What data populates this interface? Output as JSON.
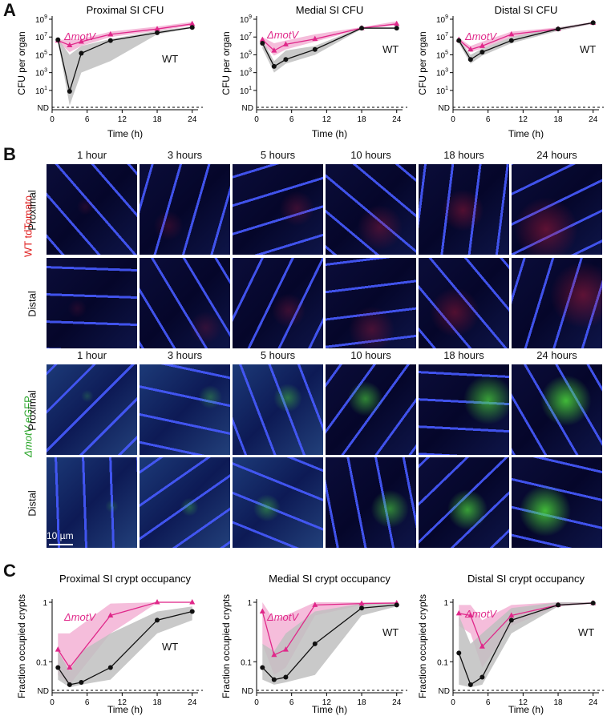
{
  "panels": {
    "A": "A",
    "B": "B",
    "C": "C"
  },
  "colors": {
    "wt": "#111111",
    "motv": "#e0288a",
    "wt_band": "#bfbfbf",
    "motv_band": "#f2a7cf"
  },
  "panel_b": {
    "time_labels": [
      "1 hour",
      "3 hours",
      "5 hours",
      "10 hours",
      "18 hours",
      "24 hours"
    ],
    "group_wt": "WT tdTomato",
    "group_motv_prefix": "ΔmotV",
    "group_motv_suffix": " eGFP",
    "row_labels": [
      "Proximal",
      "Distal"
    ],
    "scale_bar": "10 µm"
  },
  "chart_data": [
    {
      "type": "line",
      "panel": "A",
      "title": "Proximal SI CFU",
      "xlabel": "Time (h)",
      "ylabel": "CFU per organ",
      "yscale": "log",
      "x_ticks": [
        "0",
        "6",
        "12",
        "18",
        "24"
      ],
      "y_ticks": [
        "10^1",
        "10^3",
        "10^5",
        "10^7",
        "10^9"
      ],
      "nd_label": "ND",
      "ylim": [
        0.03,
        1000000000.0
      ],
      "xlim": [
        0,
        25
      ],
      "series": [
        {
          "name": "ΔmotV",
          "marker": "triangle",
          "x": [
            1,
            3,
            5,
            10,
            18,
            24
          ],
          "y": [
            4000000.0,
            1200000.0,
            3000000.0,
            20000000.0,
            80000000.0,
            300000000.0
          ],
          "band_lo": [
            3000000.0,
            200000.0,
            1000000.0,
            10000000.0,
            50000000.0,
            200000000.0
          ],
          "band_hi": [
            5000000.0,
            5000000.0,
            6000000.0,
            40000000.0,
            150000000.0,
            500000000.0
          ]
        },
        {
          "name": "WT",
          "marker": "circle",
          "x": [
            1,
            3,
            5,
            10,
            18,
            24
          ],
          "y": [
            5000000.0,
            8,
            150000.0,
            4000000.0,
            30000000.0,
            120000000.0
          ],
          "band_lo": [
            3000000.0,
            0.1,
            1000.0,
            20000.0,
            20000000.0,
            100000000.0
          ],
          "band_hi": [
            7000000.0,
            100000.0,
            1000000.0,
            6000000.0,
            50000000.0,
            150000000.0
          ]
        }
      ]
    },
    {
      "type": "line",
      "panel": "A",
      "title": "Medial SI CFU",
      "xlabel": "Time (h)",
      "ylabel": "CFU per organ",
      "yscale": "log",
      "x_ticks": [
        "0",
        "6",
        "12",
        "18",
        "24"
      ],
      "y_ticks": [
        "10^1",
        "10^3",
        "10^5",
        "10^7",
        "10^9"
      ],
      "nd_label": "ND",
      "ylim": [
        0.03,
        1000000000.0
      ],
      "xlim": [
        0,
        25
      ],
      "series": [
        {
          "name": "ΔmotV",
          "marker": "triangle",
          "x": [
            1,
            3,
            5,
            10,
            18,
            24
          ],
          "y": [
            5000000.0,
            300000.0,
            1500000.0,
            6000000.0,
            100000000.0,
            300000000.0
          ],
          "band_lo": [
            2000000.0,
            80000.0,
            400000.0,
            3000000.0,
            80000000.0,
            200000000.0
          ],
          "band_hi": [
            10000000.0,
            2000000.0,
            4000000.0,
            20000000.0,
            130000000.0,
            600000000.0
          ]
        },
        {
          "name": "WT",
          "marker": "circle",
          "x": [
            1,
            3,
            5,
            10,
            18,
            24
          ],
          "y": [
            2000000.0,
            5000.0,
            30000.0,
            400000.0,
            100000000.0,
            100000000.0
          ],
          "band_lo": [
            500000.0,
            1000.0,
            10000.0,
            100000.0,
            80000000.0,
            80000000.0
          ],
          "band_hi": [
            5000000.0,
            20000.0,
            300000.0,
            1000000.0,
            130000000.0,
            130000000.0
          ]
        }
      ]
    },
    {
      "type": "line",
      "panel": "A",
      "title": "Distal SI CFU",
      "xlabel": "Time (h)",
      "ylabel": "CFU per organ",
      "yscale": "log",
      "x_ticks": [
        "0",
        "6",
        "12",
        "18",
        "24"
      ],
      "y_ticks": [
        "10^1",
        "10^3",
        "10^5",
        "10^7",
        "10^9"
      ],
      "nd_label": "ND",
      "ylim": [
        0.03,
        1000000000.0
      ],
      "xlim": [
        0,
        25
      ],
      "series": [
        {
          "name": "ΔmotV",
          "marker": "triangle",
          "x": [
            1,
            3,
            5,
            10,
            18,
            24
          ],
          "y": [
            5000000.0,
            400000.0,
            1000000.0,
            20000000.0,
            80000000.0,
            400000000.0
          ],
          "band_lo": [
            3000000.0,
            200000.0,
            500000.0,
            10000000.0,
            50000000.0,
            300000000.0
          ],
          "band_hi": [
            8000000.0,
            1000000.0,
            3000000.0,
            40000000.0,
            120000000.0,
            500000000.0
          ]
        },
        {
          "name": "WT",
          "marker": "circle",
          "x": [
            1,
            3,
            5,
            10,
            18,
            24
          ],
          "y": [
            4000000.0,
            30000.0,
            200000.0,
            4000000.0,
            80000000.0,
            400000000.0
          ],
          "band_lo": [
            2000000.0,
            10000.0,
            80000.0,
            2000000.0,
            50000000.0,
            300000000.0
          ],
          "band_hi": [
            6000000.0,
            100000.0,
            500000.0,
            10000000.0,
            120000000.0,
            500000000.0
          ]
        }
      ]
    },
    {
      "type": "line",
      "panel": "C",
      "title": "Proximal SI crypt occupancy",
      "xlabel": "Time (h)",
      "ylabel": "Fraction occupied crypts",
      "yscale": "log",
      "x_ticks": [
        "0",
        "6",
        "12",
        "18",
        "24"
      ],
      "y_ticks": [
        "0.1",
        "1"
      ],
      "nd_label": "ND",
      "ylim": [
        0.03,
        1.1
      ],
      "xlim": [
        0,
        25
      ],
      "series": [
        {
          "name": "ΔmotV",
          "marker": "triangle",
          "x": [
            1,
            3,
            10,
            18,
            24
          ],
          "y": [
            0.16,
            0.08,
            0.6,
            1,
            1
          ],
          "band_lo": [
            0.06,
            0.04,
            0.3,
            0.98,
            0.98
          ],
          "band_hi": [
            0.3,
            0.3,
            0.95,
            1,
            1
          ]
        },
        {
          "name": "WT",
          "marker": "circle",
          "x": [
            1,
            3,
            5,
            10,
            18,
            24
          ],
          "y": [
            0.08,
            0.04,
            0.045,
            0.08,
            0.5,
            0.7
          ],
          "band_lo": [
            0.05,
            0.035,
            0.04,
            0.05,
            0.3,
            0.5
          ],
          "band_hi": [
            0.15,
            0.07,
            0.15,
            0.3,
            0.7,
            0.85
          ]
        }
      ]
    },
    {
      "type": "line",
      "panel": "C",
      "title": "Medial SI crypt occupancy",
      "xlabel": "Time (h)",
      "ylabel": "Fraction occupied crypts",
      "yscale": "log",
      "x_ticks": [
        "0",
        "6",
        "12",
        "18",
        "24"
      ],
      "y_ticks": [
        "0.1",
        "1"
      ],
      "nd_label": "ND",
      "ylim": [
        0.03,
        1.1
      ],
      "xlim": [
        0,
        25
      ],
      "series": [
        {
          "name": "ΔmotV",
          "marker": "triangle",
          "x": [
            1,
            3,
            5,
            10,
            18,
            24
          ],
          "y": [
            0.7,
            0.13,
            0.16,
            0.9,
            0.95,
            0.97
          ],
          "band_lo": [
            0.2,
            0.06,
            0.08,
            0.6,
            0.9,
            0.95
          ],
          "band_hi": [
            1,
            0.5,
            0.6,
            1,
            1,
            1
          ]
        },
        {
          "name": "WT",
          "marker": "circle",
          "x": [
            1,
            3,
            5,
            10,
            18,
            24
          ],
          "y": [
            0.08,
            0.05,
            0.055,
            0.2,
            0.8,
            0.9
          ],
          "band_lo": [
            0.05,
            0.04,
            0.045,
            0.06,
            0.6,
            0.85
          ],
          "band_hi": [
            0.2,
            0.15,
            0.3,
            0.7,
            0.95,
            0.95
          ]
        }
      ]
    },
    {
      "type": "line",
      "panel": "C",
      "title": "Distal SI crypt occupancy",
      "xlabel": "Time (h)",
      "ylabel": "Fraction occupied crypts",
      "yscale": "log",
      "x_ticks": [
        "0",
        "6",
        "12",
        "18",
        "24"
      ],
      "y_ticks": [
        "0.1",
        "1"
      ],
      "nd_label": "ND",
      "ylim": [
        0.03,
        1.1
      ],
      "xlim": [
        0,
        25
      ],
      "series": [
        {
          "name": "ΔmotV",
          "marker": "triangle",
          "x": [
            1,
            3,
            5,
            10,
            18,
            24
          ],
          "y": [
            0.65,
            0.6,
            0.18,
            0.6,
            0.9,
            0.97
          ],
          "band_lo": [
            0.4,
            0.3,
            0.08,
            0.4,
            0.85,
            0.95
          ],
          "band_hi": [
            0.9,
            0.9,
            0.5,
            0.9,
            1,
            1
          ]
        },
        {
          "name": "WT",
          "marker": "circle",
          "x": [
            1,
            3,
            5,
            10,
            18,
            24
          ],
          "y": [
            0.14,
            0.04,
            0.055,
            0.5,
            0.9,
            0.97
          ],
          "band_lo": [
            0.04,
            0.035,
            0.04,
            0.3,
            0.85,
            0.95
          ],
          "band_hi": [
            0.6,
            0.2,
            0.3,
            0.8,
            1,
            1
          ]
        }
      ]
    }
  ]
}
